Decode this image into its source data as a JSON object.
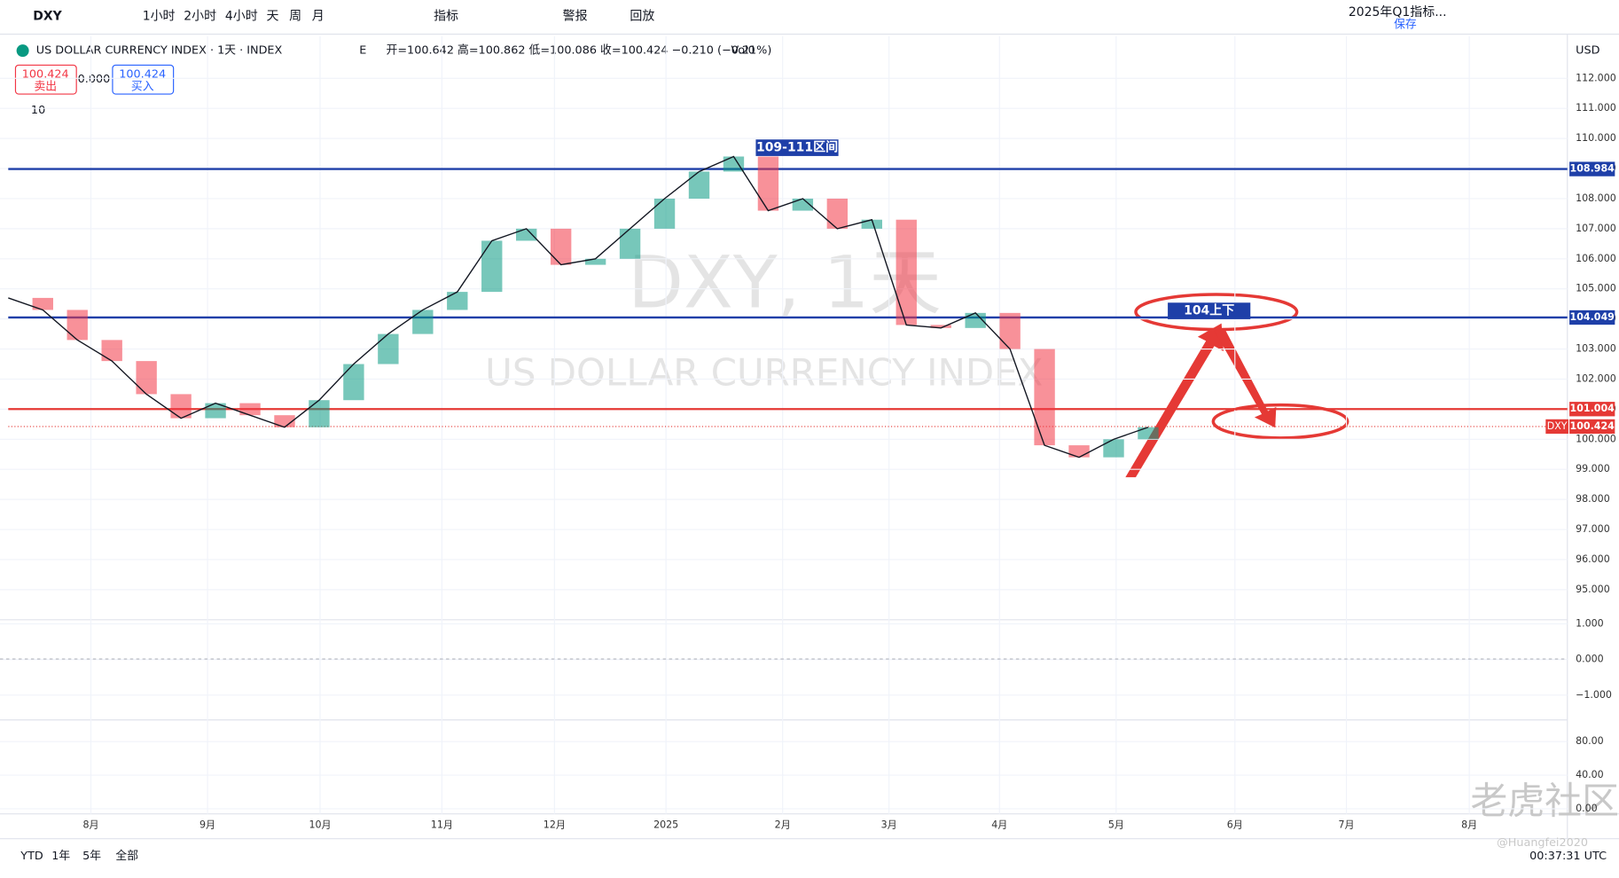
{
  "toolbar": {
    "symbol": "DXY",
    "intervals": [
      "1小时",
      "2小时",
      "4小时",
      "天",
      "周",
      "月"
    ],
    "indicators": "指标",
    "alert": "警报",
    "replay": "回放",
    "layout": "2025年Q1指标...",
    "save": "保存"
  },
  "legend": {
    "title": "US DOLLAR CURRENCY INDEX · 1天 · INDEX",
    "e": "E",
    "ohlc": "开=100.642 高=100.862 低=100.086 收=100.424 −0.210 (−0.21%)",
    "vol": "Vol0",
    "sell_price": "100.424",
    "sell": "卖出",
    "spread": "0.000",
    "buy_price": "100.424",
    "buy": "买入",
    "count": "10"
  },
  "watermark": {
    "symbol": "DXY, 1天",
    "name": "US DOLLAR CURRENCY INDEX"
  },
  "chart_data": {
    "type": "line",
    "currency": "USD",
    "color": "#131722",
    "values": [
      104.7,
      104.3,
      103.3,
      102.6,
      101.5,
      100.7,
      101.2,
      100.8,
      100.4,
      101.3,
      102.5,
      103.5,
      104.3,
      104.9,
      106.6,
      107.0,
      105.8,
      106.0,
      107.0,
      108.0,
      108.9,
      109.4,
      107.6,
      108.0,
      107.0,
      107.3,
      103.8,
      103.7,
      104.2,
      103.0,
      99.8,
      99.4,
      100.0,
      100.4
    ],
    "ylim": [
      94,
      113.4
    ],
    "yticks": [
      {
        "value": 95,
        "label": "95.000"
      },
      {
        "value": 96,
        "label": "96.000"
      },
      {
        "value": 97,
        "label": "97.000"
      },
      {
        "value": 98,
        "label": "98.000"
      },
      {
        "value": 99,
        "label": "99.000"
      },
      {
        "value": 100,
        "label": "100.000"
      },
      {
        "value": 101,
        "label": "101.000"
      },
      {
        "value": 102,
        "label": "102.000"
      },
      {
        "value": 103,
        "label": "103.000"
      },
      {
        "value": 104,
        "label": "104.000"
      },
      {
        "value": 105,
        "label": "105.000"
      },
      {
        "value": 106,
        "label": "106.000"
      },
      {
        "value": 107,
        "label": "107.000"
      },
      {
        "value": 108,
        "label": "108.000"
      },
      {
        "value": 109,
        "label": "109.000"
      },
      {
        "value": 110,
        "label": "110.000"
      },
      {
        "value": 111,
        "label": "111.000"
      },
      {
        "value": 112,
        "label": "112.000"
      }
    ],
    "levels": [
      {
        "value": 108.984,
        "color": "#1e3fa8"
      },
      {
        "value": 104.049,
        "color": "#1e3fa8"
      },
      {
        "value": 101.004,
        "color": "#e53935"
      }
    ],
    "last": {
      "name": "DXY",
      "value": 100.424
    },
    "annotations": [
      "109-111区间",
      "104上下"
    ],
    "months": [
      "8月",
      "9月",
      "10月",
      "11月",
      "12月",
      "2025",
      "2月",
      "3月",
      "4月",
      "5月",
      "6月",
      "7月",
      "8月"
    ],
    "macd_ticks": [
      {
        "value": 1,
        "label": "1.000"
      },
      {
        "value": 0,
        "label": "0.000"
      },
      {
        "value": -1,
        "label": "−1.000"
      }
    ],
    "osc_ticks": [
      {
        "value": 80,
        "label": "80.00"
      },
      {
        "value": 40,
        "label": "40.00"
      },
      {
        "value": 0,
        "label": "0.00"
      }
    ]
  },
  "footer": {
    "ranges": [
      "YTD",
      "1年",
      "5年",
      "全部"
    ],
    "time": "00:37:31 UTC",
    "brand": "老虎社区",
    "author": "@Huangfei2020"
  }
}
